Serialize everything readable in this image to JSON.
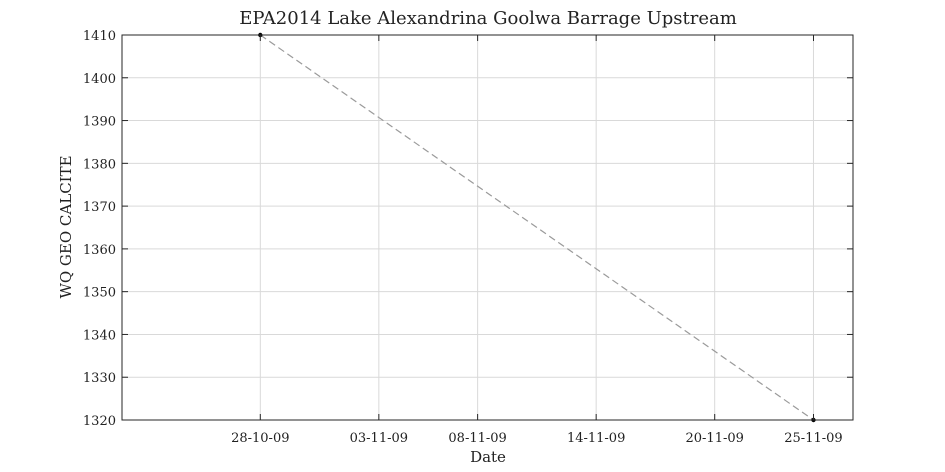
{
  "chart_data": {
    "type": "line",
    "title": "EPA2014 Lake Alexandrina Goolwa Barrage Upstream",
    "xlabel": "Date",
    "ylabel": "WQ GEO CALCITE",
    "x": [
      "2009-10-28",
      "2009-11-25"
    ],
    "series": [
      {
        "name": "WQ GEO CALCITE",
        "values": [
          1410,
          1320
        ],
        "line_style": "dashed",
        "color": "#9a9a9a",
        "marker_color": "#000000"
      }
    ],
    "xlim": [
      "2009-10-21",
      "2009-11-27"
    ],
    "ylim": [
      1320,
      1410
    ],
    "xticks": [
      {
        "date": "2009-10-28",
        "label": "28-10-09"
      },
      {
        "date": "2009-11-03",
        "label": "03-11-09"
      },
      {
        "date": "2009-11-08",
        "label": "08-11-09"
      },
      {
        "date": "2009-11-14",
        "label": "14-11-09"
      },
      {
        "date": "2009-11-20",
        "label": "20-11-09"
      },
      {
        "date": "2009-11-25",
        "label": "25-11-09"
      }
    ],
    "yticks": [
      1320,
      1330,
      1340,
      1350,
      1360,
      1370,
      1380,
      1390,
      1400,
      1410
    ],
    "grid": true
  }
}
